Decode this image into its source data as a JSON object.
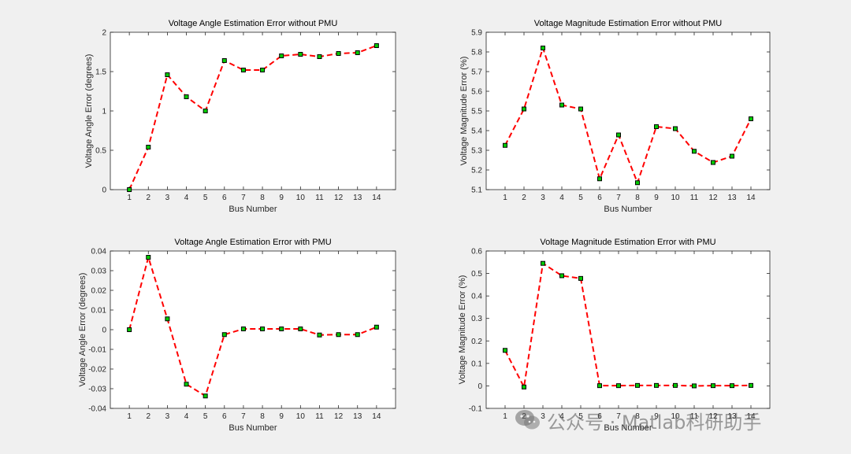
{
  "colors": {
    "background": "#f0f0f0",
    "axes_bg": "#ffffff",
    "axis_line": "#262626",
    "line": "#ff0000",
    "marker_fill": "#00cc00",
    "marker_edge": "#000000"
  },
  "watermark": {
    "text": "公众号 · Matlab科研助手",
    "icon": "wechat-icon"
  },
  "chart_data": [
    {
      "type": "line",
      "title": "Voltage Angle Estimation Error without PMU",
      "xlabel": "Bus Number",
      "ylabel": "Voltage Angle Error (degrees)",
      "x": [
        1,
        2,
        3,
        4,
        5,
        6,
        7,
        8,
        9,
        10,
        11,
        12,
        13,
        14
      ],
      "series": [
        {
          "values": [
            0,
            0.54,
            1.46,
            1.18,
            1.0,
            1.64,
            1.52,
            1.52,
            1.7,
            1.72,
            1.69,
            1.73,
            1.74,
            1.83
          ]
        }
      ],
      "xlim": [
        0,
        14
      ],
      "ylim": [
        0,
        2
      ],
      "xticks": [
        1,
        2,
        3,
        4,
        5,
        6,
        7,
        8,
        9,
        10,
        11,
        12,
        13,
        14
      ],
      "yticks": [
        0,
        0.5,
        1,
        1.5,
        2
      ],
      "yticklabels": [
        "0",
        "0.5",
        "1",
        "1.5",
        "2"
      ],
      "grid": false,
      "line_style": "dashed",
      "marker": "square"
    },
    {
      "type": "line",
      "title": "Voltage Magnitude Estimation Error without PMU",
      "xlabel": "Bus Number",
      "ylabel": "Voltage Magnitude Error (%)",
      "x": [
        1,
        2,
        3,
        4,
        5,
        6,
        7,
        8,
        9,
        10,
        11,
        12,
        13,
        14
      ],
      "series": [
        {
          "values": [
            5.325,
            5.51,
            5.82,
            5.53,
            5.51,
            5.155,
            5.378,
            5.135,
            5.42,
            5.41,
            5.295,
            5.238,
            5.27,
            5.46
          ]
        }
      ],
      "xlim": [
        0,
        14
      ],
      "ylim": [
        5.1,
        5.9
      ],
      "xticks": [
        1,
        2,
        3,
        4,
        5,
        6,
        7,
        8,
        9,
        10,
        11,
        12,
        13,
        14
      ],
      "yticks": [
        5.1,
        5.2,
        5.3,
        5.4,
        5.5,
        5.6,
        5.7,
        5.8,
        5.9
      ],
      "yticklabels": [
        "5.1",
        "5.2",
        "5.3",
        "5.4",
        "5.5",
        "5.6",
        "5.7",
        "5.8",
        "5.9"
      ],
      "grid": false,
      "line_style": "dashed",
      "marker": "square"
    },
    {
      "type": "line",
      "title": "Voltage Angle Estimation Error with PMU",
      "xlabel": "Bus Number",
      "ylabel": "Voltage Angle Error (degrees)",
      "x": [
        1,
        2,
        3,
        4,
        5,
        6,
        7,
        8,
        9,
        10,
        11,
        12,
        13,
        14
      ],
      "series": [
        {
          "values": [
            0,
            0.0368,
            0.0055,
            -0.0277,
            -0.0337,
            -0.0025,
            0.0004,
            0.0004,
            0.0004,
            0.0004,
            -0.0027,
            -0.0025,
            -0.0025,
            0.0013
          ]
        }
      ],
      "xlim": [
        0,
        14
      ],
      "ylim": [
        -0.04,
        0.04
      ],
      "xticks": [
        1,
        2,
        3,
        4,
        5,
        6,
        7,
        8,
        9,
        10,
        11,
        12,
        13,
        14
      ],
      "yticks": [
        -0.04,
        -0.03,
        -0.02,
        -0.01,
        0,
        0.01,
        0.02,
        0.03,
        0.04
      ],
      "yticklabels": [
        "-0.04",
        "-0.03",
        "-0.02",
        "-0.01",
        "0",
        "0.01",
        "0.02",
        "0.03",
        "0.04"
      ],
      "grid": false,
      "line_style": "dashed",
      "marker": "square"
    },
    {
      "type": "line",
      "title": "Voltage Magnitude Estimation Error with PMU",
      "xlabel": "Bus Number",
      "ylabel": "Voltage Magnitude Error (%)",
      "x": [
        1,
        2,
        3,
        4,
        5,
        6,
        7,
        8,
        9,
        10,
        11,
        12,
        13,
        14
      ],
      "series": [
        {
          "values": [
            0.158,
            -0.005,
            0.545,
            0.49,
            0.478,
            0.001,
            0.001,
            0.002,
            0.002,
            0.002,
            0.0,
            0.001,
            0.001,
            0.002
          ]
        }
      ],
      "xlim": [
        0,
        14
      ],
      "ylim": [
        -0.1,
        0.6
      ],
      "xticks": [
        1,
        2,
        3,
        4,
        5,
        6,
        7,
        8,
        9,
        10,
        11,
        12,
        13,
        14
      ],
      "yticks": [
        -0.1,
        0,
        0.1,
        0.2,
        0.3,
        0.4,
        0.5,
        0.6
      ],
      "yticklabels": [
        "-0.1",
        "0",
        "0.1",
        "0.2",
        "0.3",
        "0.4",
        "0.5",
        "0.6"
      ],
      "grid": false,
      "line_style": "dashed",
      "marker": "square"
    }
  ]
}
